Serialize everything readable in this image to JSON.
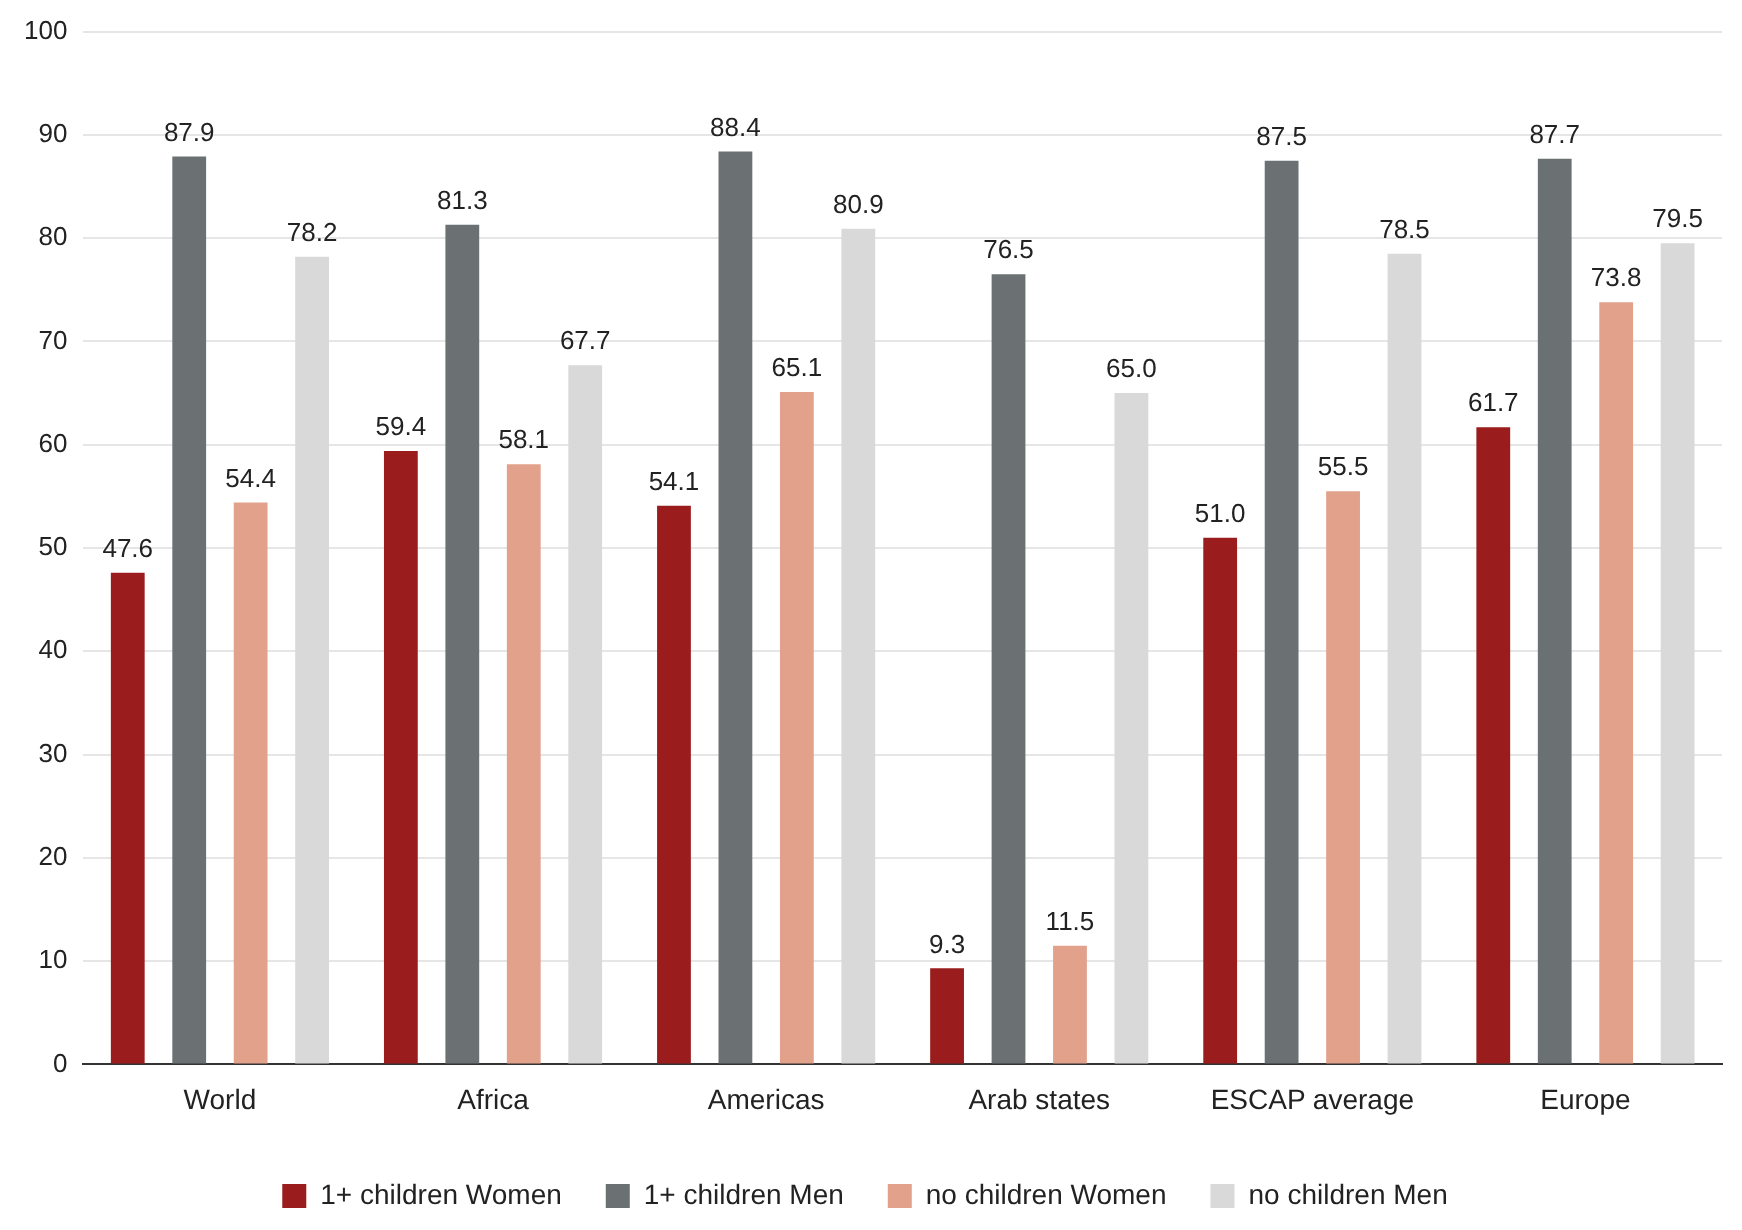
{
  "chart_data": {
    "type": "bar",
    "categories": [
      "World",
      "Africa",
      "Americas",
      "Arab states",
      "ESCAP average",
      "Europe"
    ],
    "series": [
      {
        "name": "1+ children Women",
        "color": "#9b1c1c",
        "values": [
          47.6,
          59.4,
          54.1,
          9.3,
          51.0,
          61.7
        ],
        "value_labels": [
          "47.6",
          "59.4",
          "54.1",
          "9.3",
          "51.0",
          "61.7"
        ]
      },
      {
        "name": "1+ children Men",
        "color": "#6b7172",
        "values": [
          87.9,
          81.3,
          88.4,
          76.5,
          87.5,
          87.7
        ],
        "value_labels": [
          "87.9",
          "81.3",
          "88.4",
          "76.5",
          "87.5",
          "87.7"
        ]
      },
      {
        "name": "no children Women",
        "color": "#e2a18b",
        "values": [
          54.4,
          58.1,
          65.1,
          11.5,
          55.5,
          73.8
        ],
        "value_labels": [
          "54.4",
          "58.1",
          "65.1",
          "11.5",
          "55.5",
          "73.8"
        ]
      },
      {
        "name": "no children Men",
        "color": "#d9d9d9",
        "values": [
          78.2,
          67.7,
          80.9,
          65.0,
          78.5,
          79.5
        ],
        "value_labels": [
          "78.2",
          "67.7",
          "80.9",
          "65.0",
          "78.5",
          "79.5"
        ]
      }
    ],
    "ylim": [
      0,
      100
    ],
    "yticks": [
      0,
      10,
      20,
      30,
      40,
      50,
      60,
      70,
      80,
      90,
      100
    ],
    "grid": "y",
    "legend": "bottom"
  }
}
